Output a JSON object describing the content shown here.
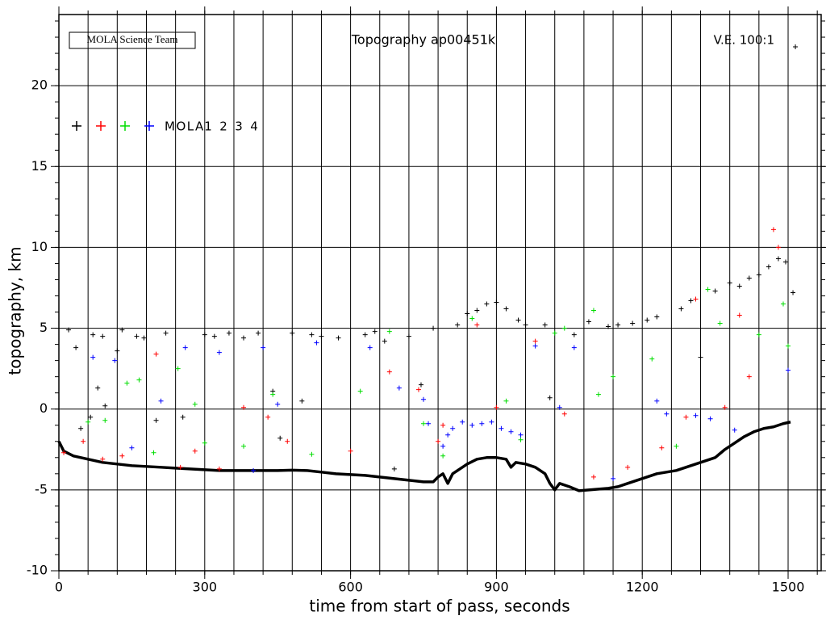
{
  "chart_data": {
    "type": "scatter",
    "title": "Topography ap00451k",
    "annotations": [
      "MOLA Science Team",
      "V.E. 100:1"
    ],
    "x_label": "time from start of pass, seconds",
    "y_label": "topography, km",
    "xlim": [
      0,
      1568
    ],
    "ylim": [
      -10,
      24.4
    ],
    "xticks": [
      0,
      300,
      600,
      900,
      1200,
      1500
    ],
    "yticks": [
      -10,
      -5,
      0,
      5,
      10,
      15,
      20
    ],
    "xminorticks": [
      0,
      60,
      120,
      180,
      240,
      300,
      360,
      420,
      480,
      540,
      600,
      660,
      720,
      780,
      840,
      900,
      960,
      1020,
      1080,
      1140,
      1200,
      1260,
      1320,
      1380,
      1440,
      1500,
      1560
    ],
    "yminorticks": [
      -10,
      -9,
      -8,
      -7,
      -6,
      -5,
      -4,
      -3,
      -2,
      -1,
      0,
      1,
      2,
      3,
      4,
      5,
      6,
      7,
      8,
      9,
      10,
      11,
      12,
      13,
      14,
      15,
      16,
      17,
      18,
      19,
      20,
      21,
      22,
      23,
      24
    ],
    "grid": true,
    "legend_title": "MOLA",
    "track": {
      "color": "#000000",
      "x": [
        0,
        10,
        30,
        60,
        90,
        120,
        150,
        180,
        210,
        240,
        270,
        300,
        330,
        360,
        390,
        420,
        450,
        480,
        510,
        540,
        570,
        600,
        630,
        660,
        690,
        720,
        750,
        770,
        780,
        790,
        800,
        810,
        820,
        840,
        860,
        880,
        900,
        920,
        930,
        940,
        960,
        980,
        1000,
        1010,
        1020,
        1030,
        1050,
        1070,
        1090,
        1110,
        1130,
        1150,
        1170,
        1190,
        1210,
        1230,
        1250,
        1270,
        1290,
        1310,
        1330,
        1350,
        1370,
        1390,
        1410,
        1430,
        1450,
        1470,
        1490,
        1505
      ],
      "values": [
        -2,
        -2.6,
        -2.9,
        -3.1,
        -3.3,
        -3.4,
        -3.5,
        -3.55,
        -3.6,
        -3.65,
        -3.7,
        -3.75,
        -3.8,
        -3.8,
        -3.8,
        -3.8,
        -3.8,
        -3.78,
        -3.8,
        -3.9,
        -4.0,
        -4.05,
        -4.1,
        -4.2,
        -4.3,
        -4.4,
        -4.5,
        -4.5,
        -4.2,
        -4.0,
        -4.6,
        -4.0,
        -3.8,
        -3.4,
        -3.1,
        -3.0,
        -3.0,
        -3.1,
        -3.6,
        -3.3,
        -3.4,
        -3.6,
        -4.0,
        -4.6,
        -5.0,
        -4.6,
        -4.8,
        -5.05,
        -5.0,
        -4.95,
        -4.9,
        -4.8,
        -4.6,
        -4.4,
        -4.2,
        -4.0,
        -3.9,
        -3.8,
        -3.6,
        -3.4,
        -3.2,
        -3.0,
        -2.5,
        -2.1,
        -1.7,
        -1.4,
        -1.2,
        -1.1,
        -0.9,
        -0.8
      ]
    },
    "series": [
      {
        "name": "1",
        "color": "#000000",
        "x": [
          20,
          35,
          45,
          65,
          70,
          80,
          90,
          95,
          120,
          130,
          160,
          175,
          200,
          220,
          255,
          300,
          320,
          350,
          380,
          410,
          440,
          455,
          480,
          500,
          520,
          540,
          575,
          630,
          650,
          670,
          690,
          720,
          745,
          770,
          820,
          840,
          860,
          880,
          900,
          920,
          945,
          960,
          1000,
          1010,
          1060,
          1090,
          1130,
          1150,
          1180,
          1210,
          1230,
          1280,
          1300,
          1320,
          1350,
          1380,
          1400,
          1420,
          1440,
          1460,
          1480,
          1495,
          1510,
          1515
        ],
        "values": [
          4.9,
          3.8,
          -1.2,
          -0.5,
          4.6,
          1.3,
          4.5,
          0.2,
          3.6,
          4.9,
          4.5,
          4.4,
          -0.7,
          4.7,
          -0.5,
          4.6,
          4.5,
          4.7,
          4.4,
          4.7,
          1.1,
          -1.8,
          4.7,
          0.5,
          4.6,
          4.5,
          4.4,
          4.6,
          4.8,
          4.2,
          -3.7,
          4.5,
          1.5,
          5.0,
          5.2,
          5.9,
          6.1,
          6.5,
          6.6,
          6.2,
          5.5,
          5.2,
          5.2,
          0.7,
          4.6,
          5.4,
          5.1,
          5.2,
          5.3,
          5.5,
          5.7,
          6.2,
          6.7,
          3.2,
          7.3,
          7.8,
          7.6,
          8.1,
          8.3,
          8.8,
          9.3,
          9.1,
          7.2,
          22.4
        ]
      },
      {
        "name": "2",
        "color": "#ff0000",
        "x": [
          10,
          50,
          90,
          130,
          200,
          250,
          280,
          330,
          380,
          430,
          470,
          600,
          680,
          740,
          780,
          790,
          860,
          900,
          980,
          1040,
          1100,
          1170,
          1240,
          1290,
          1310,
          1370,
          1400,
          1420,
          1470,
          1480
        ],
        "values": [
          -2.7,
          -2.0,
          -3.1,
          -2.9,
          3.4,
          -3.6,
          -2.6,
          -3.7,
          0.1,
          -0.5,
          -2.0,
          -2.6,
          2.3,
          1.2,
          -2.0,
          -1.0,
          5.2,
          0.1,
          4.2,
          -0.3,
          -4.2,
          -3.6,
          -2.4,
          -0.5,
          6.8,
          0.1,
          5.8,
          2.0,
          11.1,
          10.0
        ]
      },
      {
        "name": "3",
        "color": "#00dd00",
        "x": [
          60,
          95,
          140,
          165,
          195,
          245,
          280,
          300,
          380,
          440,
          520,
          620,
          680,
          750,
          790,
          850,
          920,
          950,
          1020,
          1040,
          1100,
          1110,
          1140,
          1220,
          1270,
          1335,
          1360,
          1440,
          1490,
          1500
        ],
        "values": [
          -0.8,
          -0.7,
          1.6,
          1.8,
          -2.7,
          2.5,
          0.3,
          -2.1,
          -2.3,
          0.9,
          -2.8,
          1.1,
          4.8,
          -0.9,
          -2.9,
          5.6,
          0.5,
          -1.9,
          4.7,
          5.0,
          6.1,
          0.9,
          2.0,
          3.1,
          -2.3,
          7.4,
          5.3,
          4.6,
          6.5,
          3.9
        ]
      },
      {
        "name": "4",
        "color": "#0000ff",
        "x": [
          70,
          115,
          150,
          210,
          260,
          330,
          400,
          420,
          450,
          530,
          640,
          700,
          750,
          760,
          790,
          800,
          810,
          830,
          850,
          870,
          890,
          910,
          930,
          950,
          980,
          1030,
          1060,
          1140,
          1230,
          1250,
          1310,
          1340,
          1390,
          1500
        ],
        "values": [
          3.2,
          3.0,
          -2.4,
          0.5,
          3.8,
          3.5,
          -3.8,
          3.8,
          0.3,
          4.1,
          3.8,
          1.3,
          0.6,
          -0.9,
          -2.3,
          -1.6,
          -1.2,
          -0.8,
          -1.0,
          -0.9,
          -0.8,
          -1.2,
          -1.4,
          -1.6,
          3.9,
          0.1,
          3.8,
          -4.3,
          0.5,
          -0.3,
          -0.4,
          -0.6,
          -1.3,
          2.4
        ]
      }
    ]
  }
}
